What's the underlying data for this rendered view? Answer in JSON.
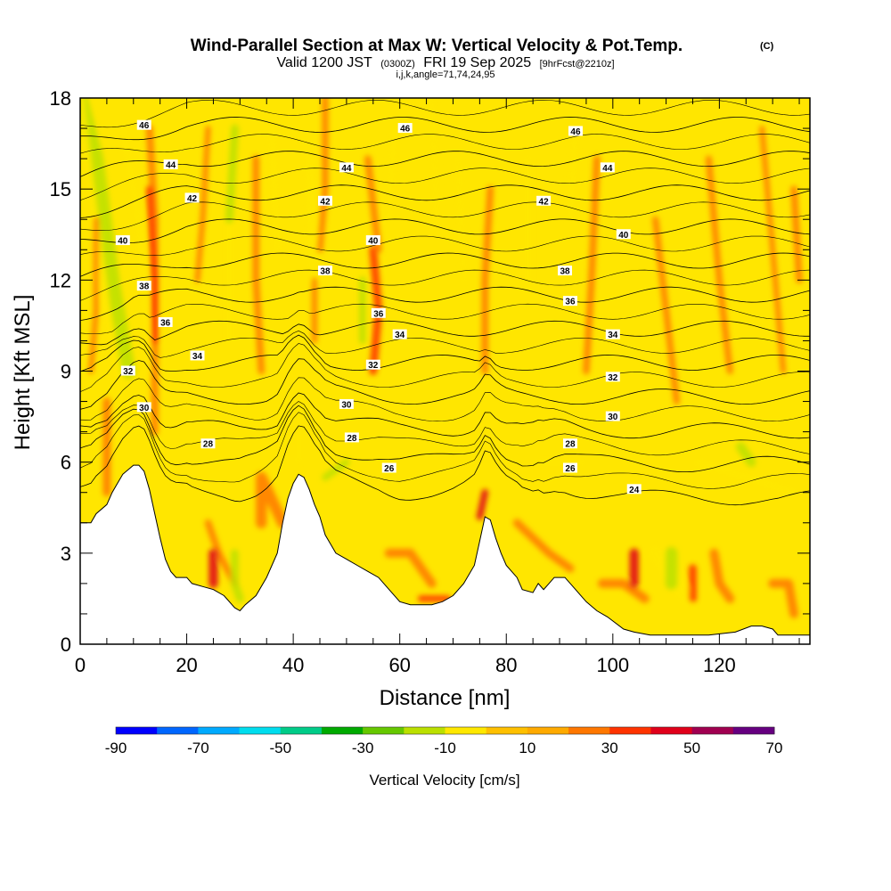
{
  "chart_data": {
    "type": "heatmap",
    "title": "Wind-Parallel Section at Max W: Vertical Velocity & Pot.Temp.",
    "title_unit": "(C)",
    "subtitle": {
      "prefix": "Valid 1200 JST",
      "utc": "(0300Z)",
      "date": "FRI 19 Sep 2025",
      "forecast": "[9hrFcst@2210z]"
    },
    "index_line": "i,j,k,angle=71,74,24,95",
    "xlabel": "Distance [nm]",
    "ylabel": "Height [Kft MSL]",
    "xlim": [
      0,
      137
    ],
    "ylim": [
      0,
      18
    ],
    "x_ticks": [
      0,
      20,
      40,
      60,
      80,
      100,
      120
    ],
    "y_ticks": [
      0,
      3,
      6,
      9,
      12,
      15,
      18
    ],
    "colorbar": {
      "label": "Vertical Velocity [cm/s]",
      "min": -90,
      "max": 70,
      "step": 10,
      "tick_labels": [
        -90,
        -70,
        -50,
        -30,
        -10,
        10,
        30,
        50,
        70
      ],
      "colors": [
        "#0000ff",
        "#0066ff",
        "#00aaff",
        "#00ddee",
        "#00cc88",
        "#00aa00",
        "#66c800",
        "#bbe000",
        "#ffe800",
        "#ffc000",
        "#ffaa00",
        "#ff7700",
        "#ff3300",
        "#e0001a",
        "#a00050",
        "#660080"
      ]
    },
    "terrain": [
      [
        0,
        4.0
      ],
      [
        2,
        4.0
      ],
      [
        3,
        4.3
      ],
      [
        5,
        4.6
      ],
      [
        6,
        5.0
      ],
      [
        7,
        5.3
      ],
      [
        8,
        5.6
      ],
      [
        10,
        5.9
      ],
      [
        11,
        5.9
      ],
      [
        12,
        5.7
      ],
      [
        13,
        5.1
      ],
      [
        14,
        4.3
      ],
      [
        15,
        3.5
      ],
      [
        16,
        2.8
      ],
      [
        17,
        2.4
      ],
      [
        18,
        2.2
      ],
      [
        20,
        2.2
      ],
      [
        21,
        2.0
      ],
      [
        23,
        1.9
      ],
      [
        25,
        1.8
      ],
      [
        27,
        1.6
      ],
      [
        29,
        1.2
      ],
      [
        30,
        1.1
      ],
      [
        31,
        1.3
      ],
      [
        33,
        1.6
      ],
      [
        35,
        2.2
      ],
      [
        37,
        3.0
      ],
      [
        38,
        4.0
      ],
      [
        39,
        4.8
      ],
      [
        40,
        5.3
      ],
      [
        41,
        5.6
      ],
      [
        42,
        5.5
      ],
      [
        43,
        5.1
      ],
      [
        44,
        4.6
      ],
      [
        45,
        4.2
      ],
      [
        46,
        3.6
      ],
      [
        47,
        3.3
      ],
      [
        48,
        3.0
      ],
      [
        50,
        2.8
      ],
      [
        52,
        2.6
      ],
      [
        54,
        2.4
      ],
      [
        56,
        2.2
      ],
      [
        58,
        1.8
      ],
      [
        60,
        1.4
      ],
      [
        62,
        1.3
      ],
      [
        64,
        1.3
      ],
      [
        66,
        1.3
      ],
      [
        68,
        1.4
      ],
      [
        70,
        1.6
      ],
      [
        72,
        2.0
      ],
      [
        74,
        2.6
      ],
      [
        75,
        3.4
      ],
      [
        76,
        4.2
      ],
      [
        77,
        4.1
      ],
      [
        78,
        3.5
      ],
      [
        79,
        3.0
      ],
      [
        80,
        2.6
      ],
      [
        82,
        2.2
      ],
      [
        83,
        1.8
      ],
      [
        85,
        1.7
      ],
      [
        86,
        2.0
      ],
      [
        87,
        1.8
      ],
      [
        88,
        2.0
      ],
      [
        89,
        2.2
      ],
      [
        91,
        2.2
      ],
      [
        93,
        1.8
      ],
      [
        95,
        1.4
      ],
      [
        97,
        1.1
      ],
      [
        99,
        0.9
      ],
      [
        102,
        0.5
      ],
      [
        104,
        0.4
      ],
      [
        107,
        0.3
      ],
      [
        112,
        0.3
      ],
      [
        118,
        0.3
      ],
      [
        123,
        0.4
      ],
      [
        126,
        0.6
      ],
      [
        128,
        0.6
      ],
      [
        130,
        0.5
      ],
      [
        131,
        0.3
      ],
      [
        133,
        0.3
      ],
      [
        137,
        0.3
      ]
    ],
    "theta_contours": [
      {
        "value": 24,
        "labels": [
          [
            104,
            5.1
          ]
        ]
      },
      {
        "value": 26,
        "labels": [
          [
            58,
            5.8
          ],
          [
            92,
            5.8
          ]
        ]
      },
      {
        "value": 28,
        "labels": [
          [
            24,
            6.6
          ],
          [
            51,
            6.8
          ],
          [
            92,
            6.6
          ]
        ]
      },
      {
        "value": 30,
        "labels": [
          [
            12,
            7.8
          ],
          [
            50,
            7.9
          ],
          [
            100,
            7.5
          ]
        ]
      },
      {
        "value": 32,
        "labels": [
          [
            9,
            9.0
          ],
          [
            55,
            9.2
          ],
          [
            100,
            8.8
          ]
        ]
      },
      {
        "value": 34,
        "labels": [
          [
            22,
            9.5
          ],
          [
            60,
            10.2
          ],
          [
            100,
            10.2
          ]
        ]
      },
      {
        "value": 36,
        "labels": [
          [
            16,
            10.6
          ],
          [
            56,
            10.9
          ],
          [
            92,
            11.3
          ]
        ]
      },
      {
        "value": 38,
        "labels": [
          [
            12,
            11.8
          ],
          [
            46,
            12.3
          ],
          [
            91,
            12.3
          ]
        ]
      },
      {
        "value": 40,
        "labels": [
          [
            8,
            13.3
          ],
          [
            55,
            13.3
          ],
          [
            102,
            13.5
          ]
        ]
      },
      {
        "value": 42,
        "labels": [
          [
            21,
            14.7
          ],
          [
            46,
            14.6
          ],
          [
            87,
            14.6
          ]
        ]
      },
      {
        "value": 44,
        "labels": [
          [
            17,
            15.8
          ],
          [
            50,
            15.7
          ],
          [
            99,
            15.7
          ]
        ]
      },
      {
        "value": 46,
        "labels": [
          [
            12,
            17.1
          ],
          [
            61,
            17.0
          ],
          [
            93,
            16.9
          ]
        ]
      }
    ]
  }
}
